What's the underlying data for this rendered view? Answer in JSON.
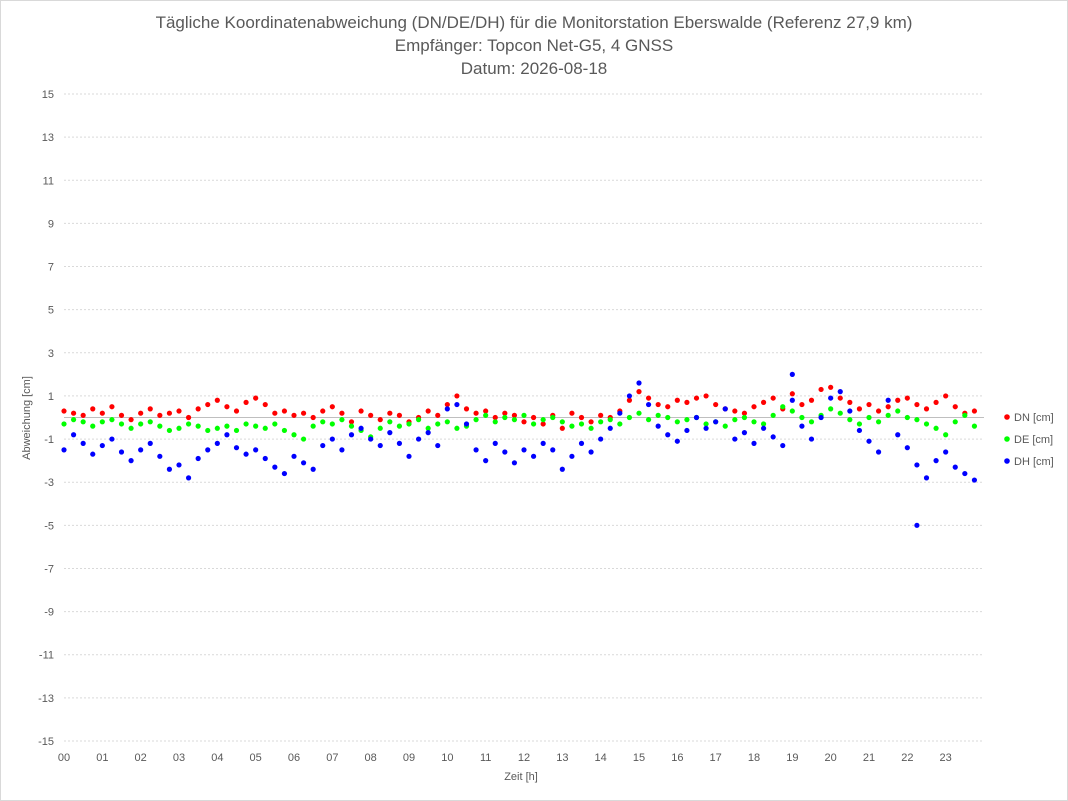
{
  "chart_data": {
    "type": "scatter",
    "title": [
      "Tägliche Koordinatenabweichung (DN/DE/DH) für die Monitorstation Eberswalde (Referenz 27,9 km)",
      "Empfänger: Topcon Net-G5, 4 GNSS",
      "Datum: 2026-08-18"
    ],
    "xlabel": "Zeit [h]",
    "ylabel": "Abweichung [cm]",
    "xlim": [
      0,
      24
    ],
    "ylim": [
      -15,
      15
    ],
    "x_ticks": [
      "00",
      "01",
      "02",
      "03",
      "04",
      "05",
      "06",
      "07",
      "08",
      "09",
      "10",
      "11",
      "12",
      "13",
      "14",
      "15",
      "16",
      "17",
      "18",
      "19",
      "20",
      "21",
      "22",
      "23"
    ],
    "y_ticks": [
      15,
      13,
      11,
      9,
      7,
      5,
      3,
      1,
      -1,
      -3,
      -5,
      -7,
      -9,
      -11,
      -13,
      -15
    ],
    "grid": true,
    "legend_position": "right",
    "series": [
      {
        "name": "DN [cm]",
        "color": "#ff0000",
        "x": [
          0.0,
          0.25,
          0.5,
          0.75,
          1.0,
          1.25,
          1.5,
          1.75,
          2.0,
          2.25,
          2.5,
          2.75,
          3.0,
          3.25,
          3.5,
          3.75,
          4.0,
          4.25,
          4.5,
          4.75,
          5.0,
          5.25,
          5.5,
          5.75,
          6.0,
          6.25,
          6.5,
          6.75,
          7.0,
          7.25,
          7.5,
          7.75,
          8.0,
          8.25,
          8.5,
          8.75,
          9.0,
          9.25,
          9.5,
          9.75,
          10.0,
          10.25,
          10.5,
          10.75,
          11.0,
          11.25,
          11.5,
          11.75,
          12.0,
          12.25,
          12.5,
          12.75,
          13.0,
          13.25,
          13.5,
          13.75,
          14.0,
          14.25,
          14.5,
          14.75,
          15.0,
          15.25,
          15.5,
          15.75,
          16.0,
          16.25,
          16.5,
          16.75,
          17.0,
          17.25,
          17.5,
          17.75,
          18.0,
          18.25,
          18.5,
          18.75,
          19.0,
          19.25,
          19.5,
          19.75,
          20.0,
          20.25,
          20.5,
          20.75,
          21.0,
          21.25,
          21.5,
          21.75,
          22.0,
          22.25,
          22.5,
          22.75,
          23.0,
          23.25,
          23.5,
          23.75
        ],
        "y": [
          0.3,
          0.2,
          0.1,
          0.4,
          0.2,
          0.5,
          0.1,
          -0.1,
          0.2,
          0.4,
          0.1,
          0.2,
          0.3,
          0.0,
          0.4,
          0.6,
          0.8,
          0.5,
          0.3,
          0.7,
          0.9,
          0.6,
          0.2,
          0.3,
          0.1,
          0.2,
          0.0,
          0.3,
          0.5,
          0.2,
          -0.2,
          0.3,
          0.1,
          -0.1,
          0.2,
          0.1,
          -0.2,
          0.0,
          0.3,
          0.1,
          0.6,
          1.0,
          0.4,
          0.2,
          0.3,
          0.0,
          0.2,
          0.1,
          -0.2,
          0.0,
          -0.3,
          0.1,
          -0.5,
          0.2,
          0.0,
          -0.2,
          0.1,
          0.0,
          0.3,
          0.8,
          1.2,
          0.9,
          0.6,
          0.5,
          0.8,
          0.7,
          0.9,
          1.0,
          0.6,
          0.4,
          0.3,
          0.2,
          0.5,
          0.7,
          0.9,
          0.4,
          1.1,
          0.6,
          0.8,
          1.3,
          1.4,
          0.9,
          0.7,
          0.4,
          0.6,
          0.3,
          0.5,
          0.8,
          0.9,
          0.6,
          0.4,
          0.7,
          1.0,
          0.5,
          0.2,
          0.3
        ]
      },
      {
        "name": "DE [cm]",
        "color": "#00ff00",
        "x": [
          0.0,
          0.25,
          0.5,
          0.75,
          1.0,
          1.25,
          1.5,
          1.75,
          2.0,
          2.25,
          2.5,
          2.75,
          3.0,
          3.25,
          3.5,
          3.75,
          4.0,
          4.25,
          4.5,
          4.75,
          5.0,
          5.25,
          5.5,
          5.75,
          6.0,
          6.25,
          6.5,
          6.75,
          7.0,
          7.25,
          7.5,
          7.75,
          8.0,
          8.25,
          8.5,
          8.75,
          9.0,
          9.25,
          9.5,
          9.75,
          10.0,
          10.25,
          10.5,
          10.75,
          11.0,
          11.25,
          11.5,
          11.75,
          12.0,
          12.25,
          12.5,
          12.75,
          13.0,
          13.25,
          13.5,
          13.75,
          14.0,
          14.25,
          14.5,
          14.75,
          15.0,
          15.25,
          15.5,
          15.75,
          16.0,
          16.25,
          16.5,
          16.75,
          17.0,
          17.25,
          17.5,
          17.75,
          18.0,
          18.25,
          18.5,
          18.75,
          19.0,
          19.25,
          19.5,
          19.75,
          20.0,
          20.25,
          20.5,
          20.75,
          21.0,
          21.25,
          21.5,
          21.75,
          22.0,
          22.25,
          22.5,
          22.75,
          23.0,
          23.25,
          23.5,
          23.75
        ],
        "y": [
          -0.3,
          -0.1,
          -0.2,
          -0.4,
          -0.2,
          -0.1,
          -0.3,
          -0.5,
          -0.3,
          -0.2,
          -0.4,
          -0.6,
          -0.5,
          -0.3,
          -0.4,
          -0.6,
          -0.5,
          -0.4,
          -0.6,
          -0.3,
          -0.4,
          -0.5,
          -0.3,
          -0.6,
          -0.8,
          -1.0,
          -0.4,
          -0.2,
          -0.3,
          -0.1,
          -0.4,
          -0.6,
          -0.9,
          -0.5,
          -0.2,
          -0.4,
          -0.3,
          -0.1,
          -0.5,
          -0.3,
          -0.2,
          -0.5,
          -0.4,
          -0.1,
          0.1,
          -0.2,
          0.0,
          -0.1,
          0.1,
          -0.3,
          -0.1,
          0.0,
          -0.2,
          -0.4,
          -0.3,
          -0.5,
          -0.2,
          -0.1,
          -0.3,
          0.0,
          0.2,
          -0.1,
          0.1,
          0.0,
          -0.2,
          -0.1,
          0.0,
          -0.3,
          -0.2,
          -0.4,
          -0.1,
          0.0,
          -0.2,
          -0.3,
          0.1,
          0.5,
          0.3,
          0.0,
          -0.2,
          0.1,
          0.4,
          0.2,
          -0.1,
          -0.3,
          0.0,
          -0.2,
          0.1,
          0.3,
          0.0,
          -0.1,
          -0.3,
          -0.5,
          -0.8,
          -0.2,
          0.1,
          -0.4
        ]
      },
      {
        "name": "DH [cm]",
        "color": "#0000ff",
        "x": [
          0.0,
          0.25,
          0.5,
          0.75,
          1.0,
          1.25,
          1.5,
          1.75,
          2.0,
          2.25,
          2.5,
          2.75,
          3.0,
          3.25,
          3.5,
          3.75,
          4.0,
          4.25,
          4.5,
          4.75,
          5.0,
          5.25,
          5.5,
          5.75,
          6.0,
          6.25,
          6.5,
          6.75,
          7.0,
          7.25,
          7.5,
          7.75,
          8.0,
          8.25,
          8.5,
          8.75,
          9.0,
          9.25,
          9.5,
          9.75,
          10.0,
          10.25,
          10.5,
          10.75,
          11.0,
          11.25,
          11.5,
          11.75,
          12.0,
          12.25,
          12.5,
          12.75,
          13.0,
          13.25,
          13.5,
          13.75,
          14.0,
          14.25,
          14.5,
          14.75,
          15.0,
          15.25,
          15.5,
          15.75,
          16.0,
          16.25,
          16.5,
          16.75,
          17.0,
          17.25,
          17.5,
          17.75,
          18.0,
          18.25,
          18.5,
          18.75,
          19.0,
          19.25,
          19.5,
          19.75,
          20.0,
          20.25,
          20.5,
          20.75,
          21.0,
          21.25,
          21.5,
          21.75,
          22.0,
          22.25,
          22.5,
          22.75,
          23.0,
          23.25,
          23.5,
          23.75,
          19.0,
          22.25
        ],
        "y": [
          -1.5,
          -0.8,
          -1.2,
          -1.7,
          -1.3,
          -1.0,
          -1.6,
          -2.0,
          -1.5,
          -1.2,
          -1.8,
          -2.4,
          -2.2,
          -2.8,
          -1.9,
          -1.5,
          -1.2,
          -0.8,
          -1.4,
          -1.7,
          -1.5,
          -1.9,
          -2.3,
          -2.6,
          -1.8,
          -2.1,
          -2.4,
          -1.3,
          -1.0,
          -1.5,
          -0.8,
          -0.5,
          -1.0,
          -1.3,
          -0.7,
          -1.2,
          -1.8,
          -1.0,
          -0.7,
          -1.3,
          0.4,
          0.6,
          -0.3,
          -1.5,
          -2.0,
          -1.2,
          -1.6,
          -2.1,
          -1.5,
          -1.8,
          -1.2,
          -1.5,
          -2.4,
          -1.8,
          -1.2,
          -1.6,
          -1.0,
          -0.5,
          0.2,
          1.0,
          1.6,
          0.6,
          -0.4,
          -0.8,
          -1.1,
          -0.6,
          0.0,
          -0.5,
          -0.2,
          0.4,
          -1.0,
          -0.7,
          -1.2,
          -0.5,
          -0.9,
          -1.3,
          0.8,
          -0.4,
          -1.0,
          0.0,
          0.9,
          1.2,
          0.3,
          -0.6,
          -1.1,
          -1.6,
          0.8,
          -0.8,
          -1.4,
          -2.2,
          -2.8,
          -2.0,
          -1.6,
          -2.3,
          -2.6,
          -2.9,
          2.0,
          -5.0
        ]
      }
    ]
  }
}
